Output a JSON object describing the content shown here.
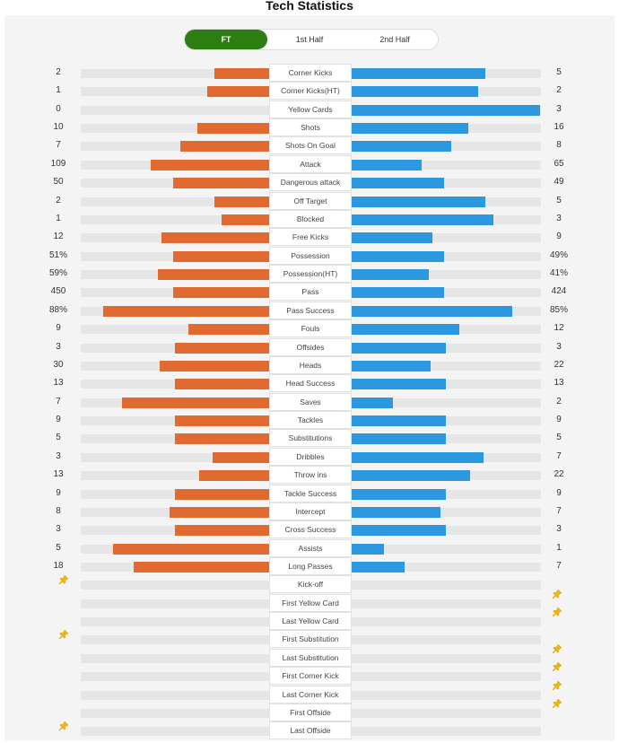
{
  "page": {
    "title": "Tech Statistics"
  },
  "tabs": [
    {
      "label": "FT",
      "active": true
    },
    {
      "label": "1st Half",
      "active": false
    },
    {
      "label": "2nd Half",
      "active": false
    }
  ],
  "colors": {
    "home": "#e06a2f",
    "away": "#2b98df",
    "active_tab": "#2c7d12",
    "pin": "#f2b705"
  },
  "stats": [
    {
      "label": "Corner Kicks",
      "home": "2",
      "away": "5",
      "home_fill": 0.29,
      "away_fill": 0.71
    },
    {
      "label": "Corner Kicks(HT)",
      "home": "1",
      "away": "2",
      "home_fill": 0.33,
      "away_fill": 0.67
    },
    {
      "label": "Yellow Cards",
      "home": "0",
      "away": "3",
      "home_fill": 0.0,
      "away_fill": 1.0
    },
    {
      "label": "Shots",
      "home": "10",
      "away": "16",
      "home_fill": 0.38,
      "away_fill": 0.62
    },
    {
      "label": "Shots On Goal",
      "home": "7",
      "away": "8",
      "home_fill": 0.47,
      "away_fill": 0.53
    },
    {
      "label": "Attack",
      "home": "109",
      "away": "65",
      "home_fill": 0.63,
      "away_fill": 0.37
    },
    {
      "label": "Dangerous attack",
      "home": "50",
      "away": "49",
      "home_fill": 0.51,
      "away_fill": 0.49
    },
    {
      "label": "Off Target",
      "home": "2",
      "away": "5",
      "home_fill": 0.29,
      "away_fill": 0.71
    },
    {
      "label": "Blocked",
      "home": "1",
      "away": "3",
      "home_fill": 0.25,
      "away_fill": 0.75
    },
    {
      "label": "Free Kicks",
      "home": "12",
      "away": "9",
      "home_fill": 0.57,
      "away_fill": 0.43
    },
    {
      "label": "Possession",
      "home": "51%",
      "away": "49%",
      "home_fill": 0.51,
      "away_fill": 0.49
    },
    {
      "label": "Possession(HT)",
      "home": "59%",
      "away": "41%",
      "home_fill": 0.59,
      "away_fill": 0.41
    },
    {
      "label": "Pass",
      "home": "450",
      "away": "424",
      "home_fill": 0.51,
      "away_fill": 0.49
    },
    {
      "label": "Pass Success",
      "home": "88%",
      "away": "85%",
      "home_fill": 0.88,
      "away_fill": 0.85
    },
    {
      "label": "Fouls",
      "home": "9",
      "away": "12",
      "home_fill": 0.43,
      "away_fill": 0.57
    },
    {
      "label": "Offsides",
      "home": "3",
      "away": "3",
      "home_fill": 0.5,
      "away_fill": 0.5
    },
    {
      "label": "Heads",
      "home": "30",
      "away": "22",
      "home_fill": 0.58,
      "away_fill": 0.42
    },
    {
      "label": "Head Success",
      "home": "13",
      "away": "13",
      "home_fill": 0.5,
      "away_fill": 0.5
    },
    {
      "label": "Saves",
      "home": "7",
      "away": "2",
      "home_fill": 0.78,
      "away_fill": 0.22
    },
    {
      "label": "Tackles",
      "home": "9",
      "away": "9",
      "home_fill": 0.5,
      "away_fill": 0.5
    },
    {
      "label": "Substitutions",
      "home": "5",
      "away": "5",
      "home_fill": 0.5,
      "away_fill": 0.5
    },
    {
      "label": "Dribbles",
      "home": "3",
      "away": "7",
      "home_fill": 0.3,
      "away_fill": 0.7
    },
    {
      "label": "Throw ins",
      "home": "13",
      "away": "22",
      "home_fill": 0.37,
      "away_fill": 0.63
    },
    {
      "label": "Tackle Success",
      "home": "9",
      "away": "9",
      "home_fill": 0.5,
      "away_fill": 0.5
    },
    {
      "label": "Intercept",
      "home": "8",
      "away": "7",
      "home_fill": 0.53,
      "away_fill": 0.47
    },
    {
      "label": "Cross Success",
      "home": "3",
      "away": "3",
      "home_fill": 0.5,
      "away_fill": 0.5
    },
    {
      "label": "Assists",
      "home": "5",
      "away": "1",
      "home_fill": 0.83,
      "away_fill": 0.17
    },
    {
      "label": "Long Passes",
      "home": "18",
      "away": "7",
      "home_fill": 0.72,
      "away_fill": 0.28
    }
  ],
  "events": [
    {
      "label": "Kick-off",
      "team": "home"
    },
    {
      "label": "First Yellow Card",
      "team": "away"
    },
    {
      "label": "Last Yellow Card",
      "team": "away"
    },
    {
      "label": "First Substitution",
      "team": "home"
    },
    {
      "label": "Last Substitution",
      "team": "away"
    },
    {
      "label": "First Corner Kick",
      "team": "away"
    },
    {
      "label": "Last Corner Kick",
      "team": "away"
    },
    {
      "label": "First Offside",
      "team": "away"
    },
    {
      "label": "Last Offside",
      "team": "home"
    }
  ]
}
